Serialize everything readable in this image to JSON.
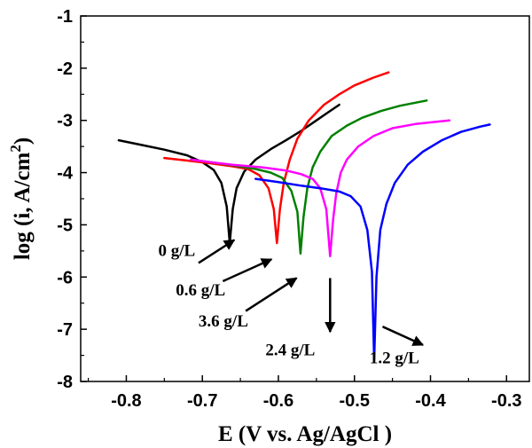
{
  "chart_data": {
    "type": "line",
    "xlabel": "E (V vs. Ag/AgCl )",
    "ylabel_main": "log (i, A/cm",
    "ylabel_sup": "2",
    "ylabel_close": ")",
    "xlim": [
      -0.86,
      -0.27
    ],
    "ylim": [
      -8,
      -1
    ],
    "xticks": [
      -0.8,
      -0.7,
      -0.6,
      -0.5,
      -0.4,
      -0.3
    ],
    "xtick_labels": [
      "-0.8",
      "-0.7",
      "-0.6",
      "-0.5",
      "-0.4",
      "-0.3"
    ],
    "yticks": [
      -8,
      -7,
      -6,
      -5,
      -4,
      -3,
      -2,
      -1
    ],
    "ytick_labels": [
      "-8",
      "-7",
      "-6",
      "-5",
      "-4",
      "-3",
      "-2",
      "-1"
    ],
    "grid": false,
    "series": [
      {
        "name": "0 g/L",
        "color": "#000000",
        "x": [
          -0.81,
          -0.78,
          -0.75,
          -0.72,
          -0.7,
          -0.685,
          -0.675,
          -0.668,
          -0.664,
          -0.66,
          -0.655,
          -0.645,
          -0.63,
          -0.61,
          -0.59,
          -0.57,
          -0.55,
          -0.535,
          -0.52
        ],
        "y": [
          -3.38,
          -3.47,
          -3.56,
          -3.67,
          -3.8,
          -3.95,
          -4.2,
          -4.65,
          -5.35,
          -4.7,
          -4.3,
          -3.98,
          -3.75,
          -3.55,
          -3.38,
          -3.2,
          -3.0,
          -2.85,
          -2.7
        ]
      },
      {
        "name": "0.6 g/L",
        "color": "#ff0000",
        "x": [
          -0.75,
          -0.72,
          -0.69,
          -0.66,
          -0.64,
          -0.625,
          -0.613,
          -0.606,
          -0.602,
          -0.598,
          -0.593,
          -0.585,
          -0.575,
          -0.56,
          -0.54,
          -0.52,
          -0.5,
          -0.475,
          -0.455
        ],
        "y": [
          -3.72,
          -3.77,
          -3.82,
          -3.88,
          -3.93,
          -4.05,
          -4.3,
          -4.7,
          -5.35,
          -4.7,
          -4.2,
          -3.75,
          -3.35,
          -3.0,
          -2.7,
          -2.5,
          -2.33,
          -2.18,
          -2.08
        ]
      },
      {
        "name": "3.6 g/L",
        "color": "#008000",
        "x": [
          -0.715,
          -0.69,
          -0.66,
          -0.63,
          -0.61,
          -0.595,
          -0.583,
          -0.575,
          -0.571,
          -0.567,
          -0.562,
          -0.555,
          -0.545,
          -0.53,
          -0.51,
          -0.49,
          -0.465,
          -0.44,
          -0.405
        ],
        "y": [
          -3.75,
          -3.8,
          -3.86,
          -3.93,
          -4.0,
          -4.1,
          -4.35,
          -4.75,
          -5.55,
          -4.85,
          -4.3,
          -3.9,
          -3.6,
          -3.3,
          -3.1,
          -2.95,
          -2.82,
          -2.72,
          -2.62
        ]
      },
      {
        "name": "2.4 g/L",
        "color": "#ff00ff",
        "x": [
          -0.715,
          -0.69,
          -0.66,
          -0.62,
          -0.59,
          -0.57,
          -0.555,
          -0.545,
          -0.537,
          -0.532,
          -0.528,
          -0.524,
          -0.518,
          -0.51,
          -0.495,
          -0.475,
          -0.45,
          -0.42,
          -0.395,
          -0.375
        ],
        "y": [
          -3.75,
          -3.8,
          -3.85,
          -3.9,
          -3.96,
          -4.03,
          -4.12,
          -4.3,
          -4.7,
          -5.6,
          -4.9,
          -4.4,
          -4.0,
          -3.75,
          -3.5,
          -3.3,
          -3.15,
          -3.07,
          -3.03,
          -3.0
        ]
      },
      {
        "name": "1.2 g/L",
        "color": "#0000ff",
        "x": [
          -0.63,
          -0.6,
          -0.57,
          -0.545,
          -0.52,
          -0.505,
          -0.492,
          -0.483,
          -0.477,
          -0.474,
          -0.471,
          -0.466,
          -0.458,
          -0.447,
          -0.43,
          -0.41,
          -0.385,
          -0.36,
          -0.335,
          -0.322
        ],
        "y": [
          -4.12,
          -4.18,
          -4.25,
          -4.3,
          -4.36,
          -4.45,
          -4.65,
          -5.1,
          -5.9,
          -7.6,
          -6.0,
          -5.1,
          -4.6,
          -4.2,
          -3.85,
          -3.6,
          -3.38,
          -3.22,
          -3.12,
          -3.08
        ]
      }
    ],
    "annotations": [
      {
        "text": "0 g/L",
        "label_at": [
          -0.758,
          -5.6
        ],
        "arrow_from": [
          -0.705,
          -5.73
        ],
        "arrow_to": [
          -0.658,
          -5.29
        ]
      },
      {
        "text": "0.6 g/L",
        "label_at": [
          -0.735,
          -6.35
        ],
        "arrow_from": [
          -0.673,
          -6.08
        ],
        "arrow_to": [
          -0.609,
          -5.66
        ]
      },
      {
        "text": "3.6 g/L",
        "label_at": [
          -0.705,
          -6.95
        ],
        "arrow_from": [
          -0.643,
          -6.65
        ],
        "arrow_to": [
          -0.576,
          -6.02
        ]
      },
      {
        "text": "2.4 g/L",
        "label_at": [
          -0.617,
          -7.5
        ],
        "arrow_from": [
          -0.532,
          -6.02
        ],
        "arrow_to": [
          -0.532,
          -7.05
        ]
      },
      {
        "text": "1.2 g/L",
        "label_at": [
          -0.48,
          -7.65
        ],
        "arrow_from": [
          -0.463,
          -6.95
        ],
        "arrow_to": [
          -0.41,
          -7.3
        ]
      }
    ]
  }
}
